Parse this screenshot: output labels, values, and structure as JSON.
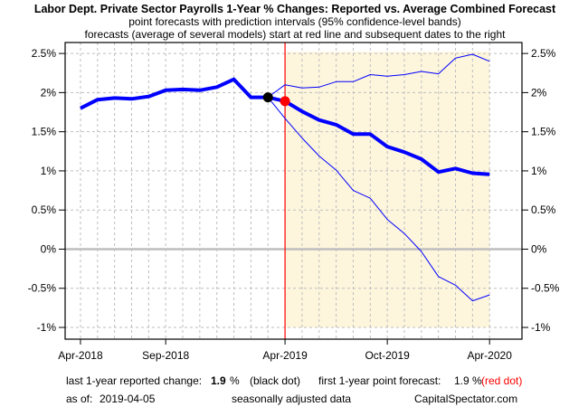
{
  "chart_data": {
    "type": "line",
    "title": "Labor Dept. Private Sector Payrolls 1-Year % Changes: Reported vs. Average Combined Forecast",
    "subtitle_lines": [
      "point forecasts with prediction intervals (95% confidence-level bands)",
      "forecasts (average of several models) start at red line and subsequent dates to the right"
    ],
    "xlabel": "",
    "ylabel": "",
    "x_tick_labels": [
      "Apr-2018",
      "Sep-2018",
      "Apr-2019",
      "Oct-2019",
      "Apr-2020"
    ],
    "x_tick_month_index": [
      0,
      5,
      12,
      18,
      24
    ],
    "y_ticks": [
      -1,
      -0.5,
      0,
      0.5,
      1,
      1.5,
      2,
      2.5
    ],
    "y_tick_labels": [
      "-1%",
      "-0.5%",
      "0%",
      "0.5%",
      "1%",
      "1.5%",
      "2%",
      "2.5%"
    ],
    "ylim": [
      -1.15,
      2.64
    ],
    "x_month_range": [
      -0.9,
      25.9
    ],
    "grid": true,
    "forecast_start_month_index": 12,
    "forecast_start_label": "Apr-2019",
    "series": [
      {
        "name": "Reported",
        "role": "history",
        "month_index": [
          0,
          1,
          2,
          3,
          4,
          5,
          6,
          7,
          8,
          9,
          10,
          11
        ],
        "values": [
          1.8,
          1.91,
          1.93,
          1.92,
          1.95,
          2.03,
          2.04,
          2.03,
          2.07,
          2.17,
          1.94,
          1.94
        ]
      },
      {
        "name": "Average combined forecast",
        "role": "forecast",
        "month_index": [
          11,
          12,
          13,
          14,
          15,
          16,
          17,
          18,
          19,
          20,
          21,
          22,
          23,
          24
        ],
        "values": [
          1.94,
          1.89,
          1.76,
          1.65,
          1.59,
          1.47,
          1.47,
          1.31,
          1.24,
          1.15,
          0.985,
          1.03,
          0.97,
          0.955
        ]
      },
      {
        "name": "Upper 95% prediction interval",
        "role": "upper",
        "month_index": [
          11,
          12,
          13,
          14,
          15,
          16,
          17,
          18,
          19,
          20,
          21,
          22,
          23,
          24
        ],
        "values": [
          1.94,
          2.1,
          2.06,
          2.07,
          2.14,
          2.14,
          2.23,
          2.21,
          2.23,
          2.27,
          2.24,
          2.44,
          2.49,
          2.4
        ]
      },
      {
        "name": "Lower 95% prediction interval",
        "role": "lower",
        "month_index": [
          11,
          12,
          13,
          14,
          15,
          16,
          17,
          18,
          19,
          20,
          21,
          22,
          23,
          24
        ],
        "values": [
          1.94,
          1.67,
          1.42,
          1.19,
          1.01,
          0.75,
          0.65,
          0.38,
          0.2,
          -0.03,
          -0.35,
          -0.46,
          -0.66,
          -0.585
        ]
      }
    ],
    "markers": [
      {
        "name": "last reported",
        "month_index": 11,
        "value": 1.94,
        "color": "#000000"
      },
      {
        "name": "first forecast",
        "month_index": 12,
        "value": 1.89,
        "color": "#ff0000"
      }
    ],
    "forecast_shading": {
      "y_range": [
        -1,
        2.52
      ],
      "month_range": [
        12,
        24
      ]
    },
    "colors": {
      "line": "#0000ff",
      "forecast_marker_line": "#ff0000",
      "shading": "#fdf5dc",
      "grid": "#bebebe",
      "zero_line": "#bebebe"
    }
  },
  "footer": {
    "reported_label": "last 1-year reported change:",
    "reported_value": "1.9",
    "reported_unit": "%",
    "reported_note": "(black dot)",
    "forecast_label": "first 1-year point forecast:",
    "forecast_value": "1.9 %",
    "forecast_note": "(red dot)",
    "asof_label": "as of:",
    "asof_date": "2019-04-05",
    "adjustment_note": "seasonally adjusted data",
    "source": "CapitalSpectator.com"
  }
}
